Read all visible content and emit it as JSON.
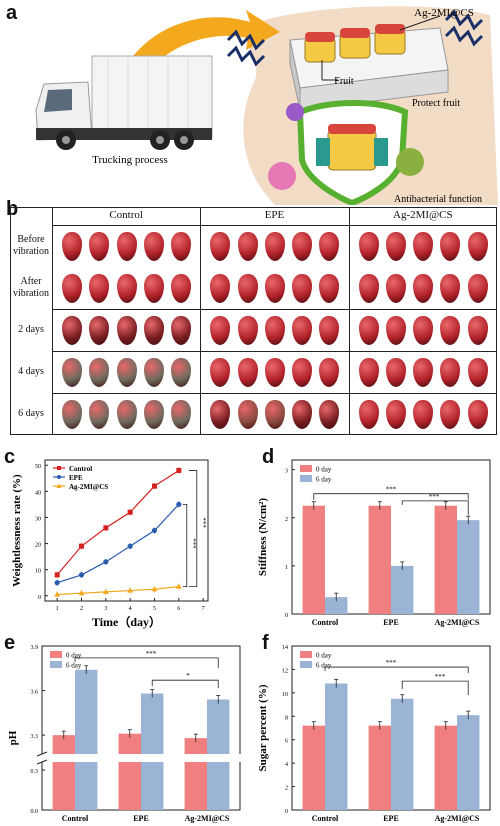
{
  "panel_labels": {
    "a": "a",
    "b": "b",
    "c": "c",
    "d": "d",
    "e": "e",
    "f": "f"
  },
  "panel_a": {
    "truck_caption": "Trucking process",
    "fruit_label": "Fruit",
    "material_label": "Ag-2MI@CS",
    "protect_label": "Protect fruit",
    "antibacterial_label": "Antibacterial function"
  },
  "panel_b": {
    "columns": [
      "Control",
      "EPE",
      "Ag-2MI@CS"
    ],
    "rows": [
      [
        "Before",
        "vibration"
      ],
      [
        "After",
        "vibration"
      ],
      [
        "2 days",
        ""
      ],
      [
        "4 days",
        ""
      ],
      [
        "6 days",
        ""
      ]
    ],
    "colors": {
      "fresh": "#b3222a",
      "dark": "#7a1e22",
      "rotten": "#6f6a5e"
    }
  },
  "chart_data": [
    {
      "panel": "c",
      "type": "line",
      "xlabel": "Time（day）",
      "ylabel": "Weightlessness rate (%)",
      "x": [
        1,
        2,
        3,
        4,
        5,
        6
      ],
      "xticks": [
        1,
        2,
        3,
        4,
        5,
        6,
        7
      ],
      "yticks": [
        0,
        10,
        20,
        30,
        40,
        50
      ],
      "ylim": [
        -2,
        52
      ],
      "xlim": [
        0.5,
        7.2
      ],
      "series": [
        {
          "name": "Control",
          "color": "#d62020",
          "marker": "square",
          "values": [
            8,
            19,
            26,
            32,
            42,
            48
          ]
        },
        {
          "name": "EPE",
          "color": "#2a5cb0",
          "marker": "circle",
          "values": [
            5,
            8,
            13,
            19,
            25,
            35
          ]
        },
        {
          "name": "Ag-2MI@CS",
          "color": "#f2a81c",
          "marker": "triangle",
          "values": [
            0.5,
            1,
            1.5,
            2,
            2.5,
            3.5
          ]
        }
      ],
      "annotations": [
        "***",
        "***"
      ],
      "legend": "top-left"
    },
    {
      "panel": "d",
      "type": "bar",
      "ylabel": "Stiffness (N/cm²)",
      "categories": [
        "Control",
        "EPE",
        "Ag-2MI@CS"
      ],
      "yticks": [
        0,
        1,
        2,
        3
      ],
      "ylim": [
        0,
        3.2
      ],
      "series": [
        {
          "name": "0 day",
          "color": "#f08080",
          "values": [
            2.25,
            2.25,
            2.25
          ]
        },
        {
          "name": "6 day",
          "color": "#9bb3d4",
          "values": [
            0.35,
            1.0,
            1.95
          ]
        }
      ],
      "annotations": [
        "***",
        "***"
      ],
      "legend": "top-left"
    },
    {
      "panel": "e",
      "type": "bar",
      "ylabel": "pH",
      "categories": [
        "Control",
        "EPE",
        "Ag-2MI@CS"
      ],
      "yticks_top": [
        "3.9",
        "3.6",
        "3.3"
      ],
      "yticks_bottom": [
        "0.3",
        "0.0"
      ],
      "series": [
        {
          "name": "0 day",
          "color": "#f08080",
          "values": [
            3.3,
            3.31,
            3.28
          ]
        },
        {
          "name": "6 day",
          "color": "#9bb3d4",
          "values": [
            3.74,
            3.58,
            3.54
          ]
        }
      ],
      "annotations": [
        "***",
        "*"
      ],
      "legend": "top-left"
    },
    {
      "panel": "f",
      "type": "bar",
      "ylabel": "Sugar percent (%)",
      "categories": [
        "Control",
        "EPE",
        "Ag-2MI@CS"
      ],
      "yticks": [
        0,
        2,
        4,
        6,
        8,
        10,
        12,
        14
      ],
      "ylim": [
        0,
        14
      ],
      "series": [
        {
          "name": "0 day",
          "color": "#f08080",
          "values": [
            7.2,
            7.2,
            7.2
          ]
        },
        {
          "name": "6 day",
          "color": "#9bb3d4",
          "values": [
            10.8,
            9.5,
            8.1
          ]
        }
      ],
      "annotations": [
        "***",
        "***"
      ],
      "legend": "top-left"
    }
  ]
}
